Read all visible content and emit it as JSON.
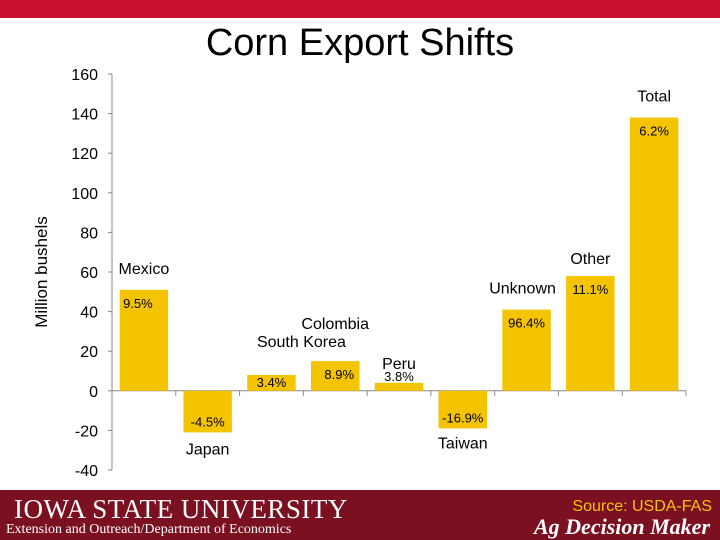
{
  "colors": {
    "bar": "#f5c400",
    "accent": "#c8102e",
    "footer": "#7a1020",
    "pct_text": "#ffffff"
  },
  "title": "Corn Export Shifts",
  "chart_data": {
    "type": "bar",
    "title": "Corn Export Shifts",
    "ylabel": "Million bushels",
    "xlabel": "",
    "ylim": [
      -40,
      160
    ],
    "yticks": [
      -40,
      -20,
      0,
      20,
      40,
      60,
      80,
      100,
      120,
      140,
      160
    ],
    "grid": false,
    "categories": [
      "Mexico",
      "Japan",
      "South Korea",
      "Colombia",
      "Peru",
      "Taiwan",
      "Unknown",
      "Other",
      "Total"
    ],
    "values": [
      51,
      -21,
      8,
      15,
      4,
      -19,
      41,
      58,
      138
    ],
    "pct_labels": [
      "9.5%",
      "-4.5%",
      "3.4%",
      "8.9%",
      "3.8%",
      "-16.9%",
      "96.4%",
      "11.1%",
      "6.2%"
    ]
  },
  "footer": {
    "university": "IOWA STATE UNIVERSITY",
    "department": "Extension and Outreach/Department of Economics",
    "source": "Source: USDA-FAS",
    "brand": "Ag Decision Maker"
  }
}
